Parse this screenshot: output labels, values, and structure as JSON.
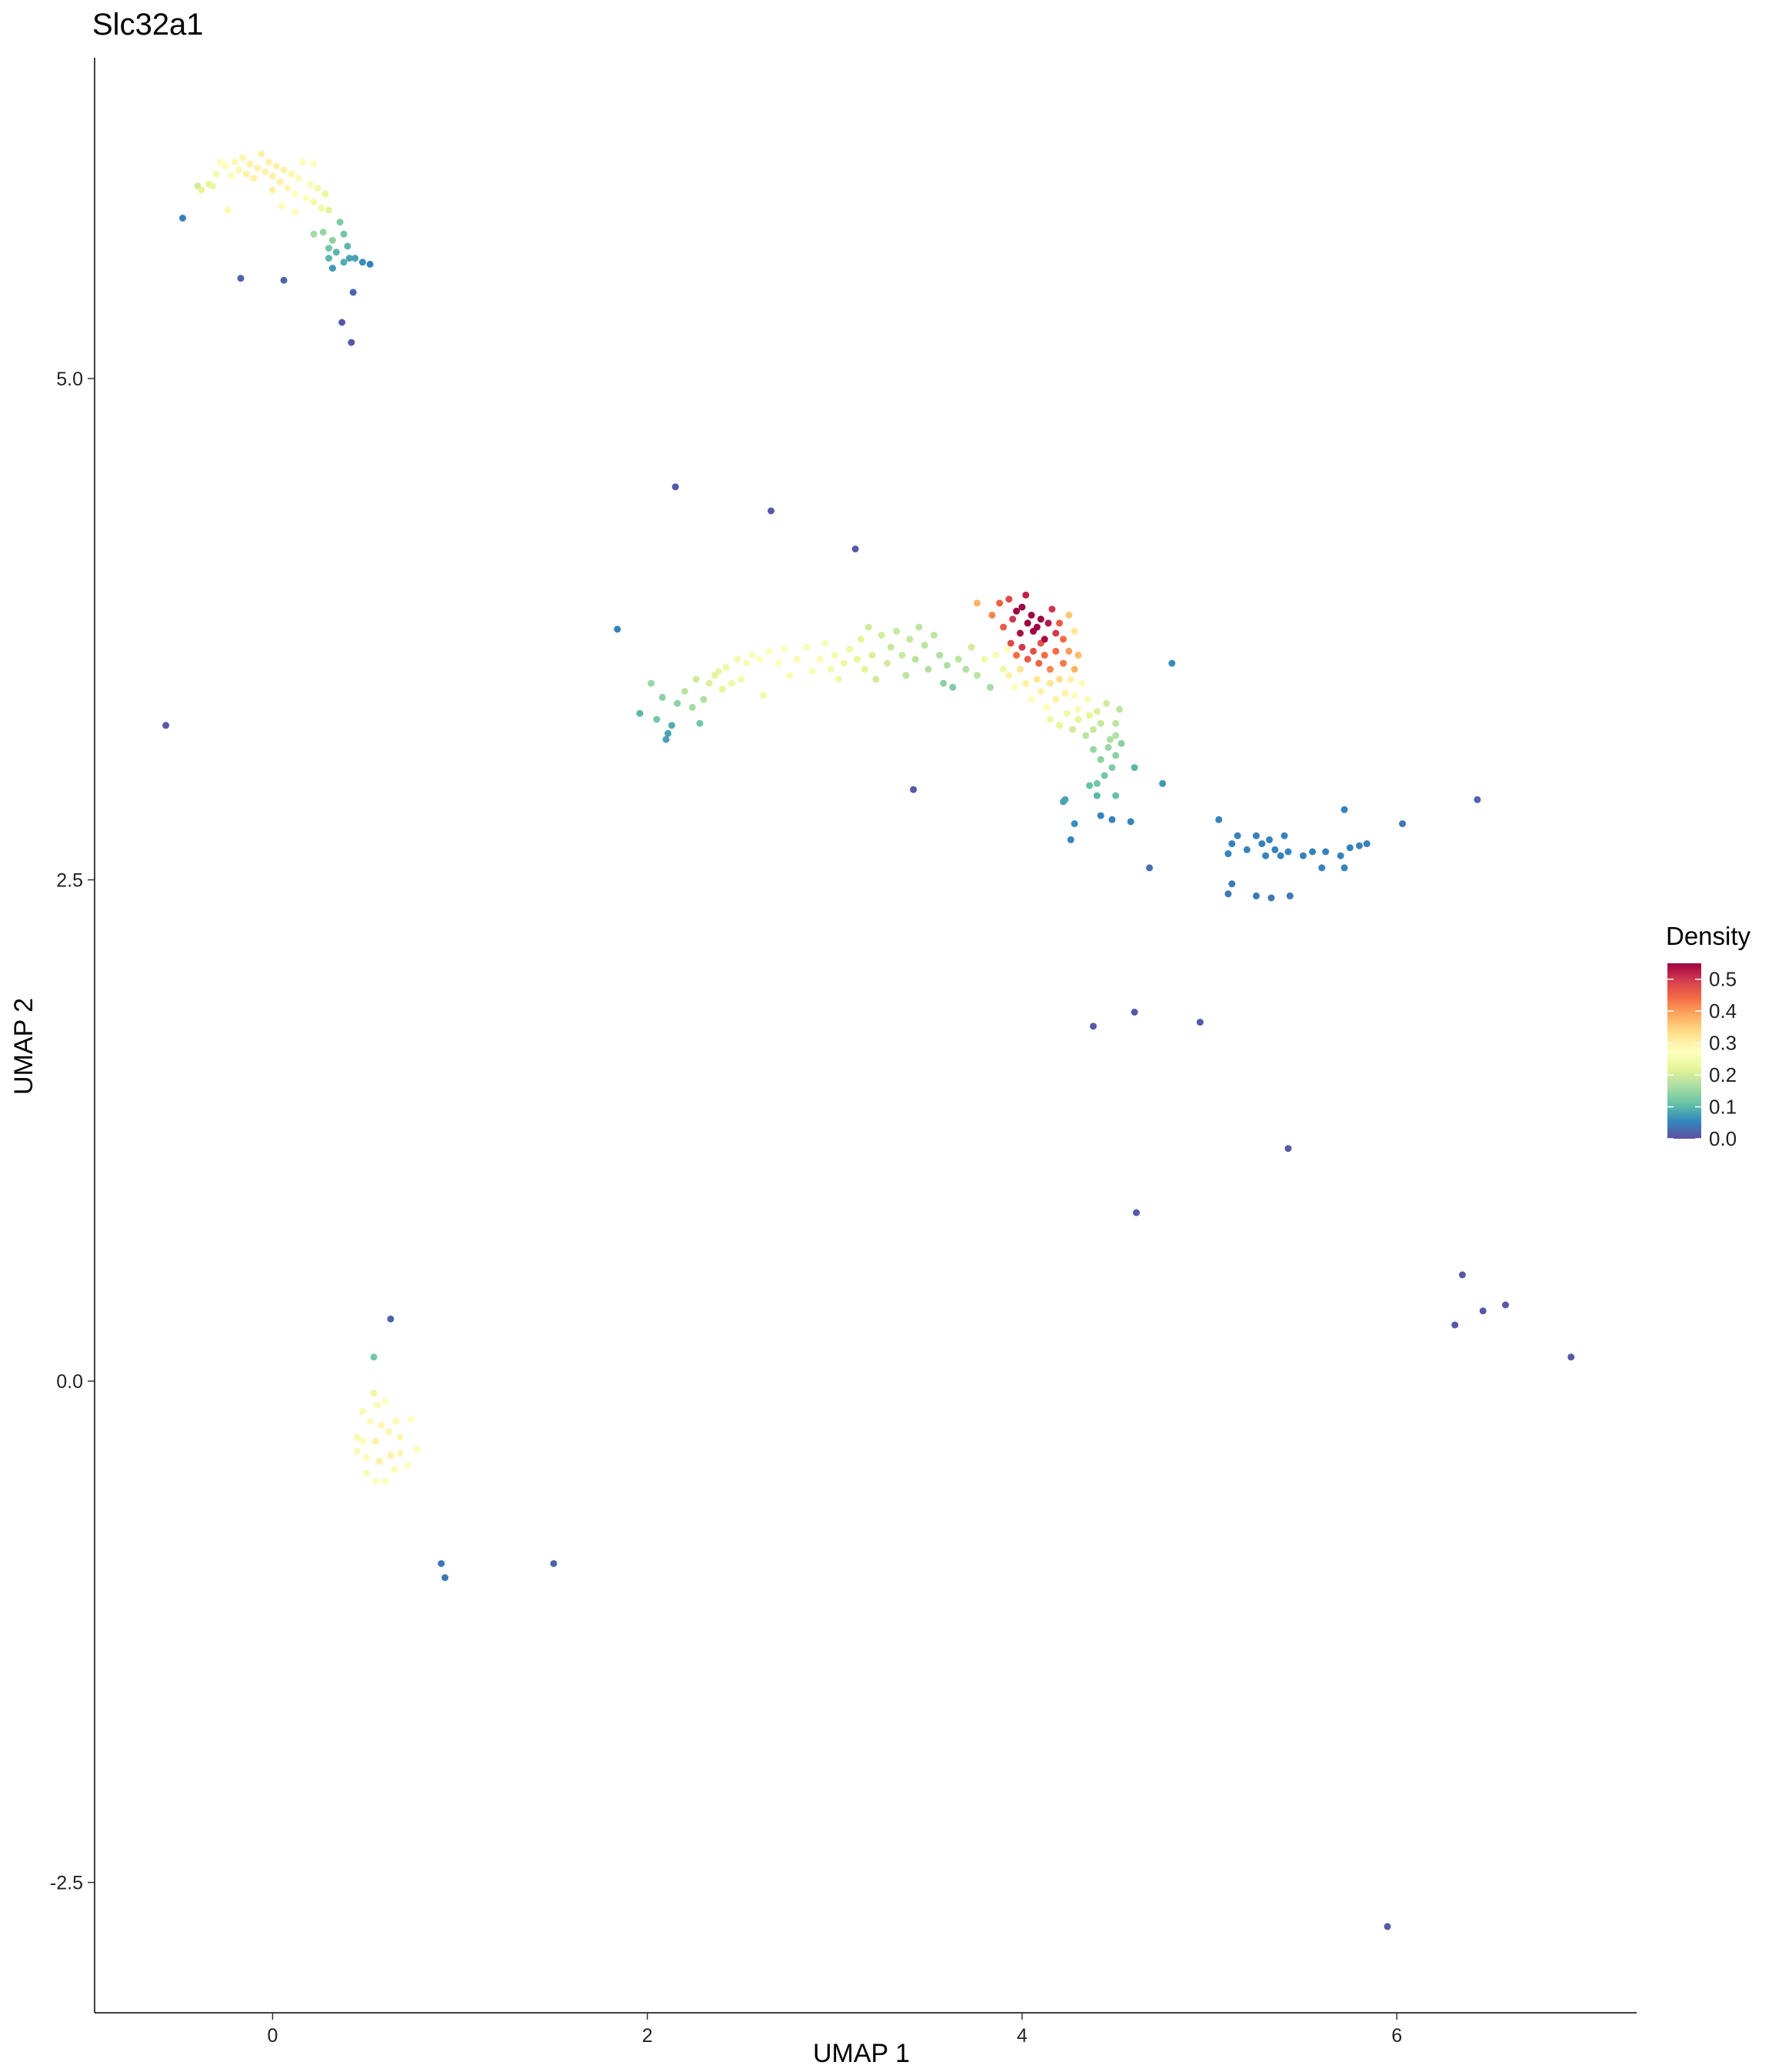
{
  "chart_data": {
    "type": "scatter",
    "title": "Slc32a1",
    "xlabel": "UMAP 1",
    "ylabel": "UMAP 2",
    "xlim": [
      -0.95,
      7.28
    ],
    "ylim": [
      -3.15,
      6.6
    ],
    "x_ticks": [
      0,
      2,
      4,
      6
    ],
    "y_ticks": [
      -2.5,
      0.0,
      2.5,
      5.0
    ],
    "x_tick_labels": [
      "0",
      "2",
      "4",
      "6"
    ],
    "y_tick_labels": [
      "-2.5",
      "0.0",
      "2.5",
      "5.0"
    ],
    "grid": false,
    "legend": {
      "title": "Density",
      "placement": "right",
      "range": [
        0.0,
        0.55
      ],
      "ticks": [
        0.0,
        0.1,
        0.2,
        0.3,
        0.4,
        0.5
      ],
      "tick_labels": [
        "0.0",
        "0.1",
        "0.2",
        "0.3",
        "0.4",
        "0.5"
      ],
      "colors": [
        "#5e4fa2",
        "#3288bd",
        "#66c2a5",
        "#abdda4",
        "#e6f598",
        "#ffffbf",
        "#fee08b",
        "#fdae61",
        "#f46d43",
        "#d53e4f",
        "#9e0142"
      ]
    },
    "points": [
      [
        -0.48,
        5.8,
        0.05
      ],
      [
        -0.4,
        5.96,
        0.2
      ],
      [
        -0.38,
        5.94,
        0.22
      ],
      [
        -0.34,
        5.97,
        0.22
      ],
      [
        -0.32,
        5.96,
        0.23
      ],
      [
        -0.3,
        6.02,
        0.25
      ],
      [
        -0.28,
        6.08,
        0.27
      ],
      [
        -0.25,
        6.06,
        0.28
      ],
      [
        -0.22,
        6.01,
        0.28
      ],
      [
        -0.2,
        6.08,
        0.29
      ],
      [
        -0.18,
        6.04,
        0.29
      ],
      [
        -0.16,
        6.1,
        0.29
      ],
      [
        -0.14,
        6.02,
        0.3
      ],
      [
        -0.12,
        6.07,
        0.3
      ],
      [
        -0.1,
        6.0,
        0.3
      ],
      [
        -0.08,
        6.05,
        0.3
      ],
      [
        -0.06,
        6.12,
        0.3
      ],
      [
        -0.04,
        6.03,
        0.3
      ],
      [
        -0.02,
        6.08,
        0.3
      ],
      [
        0.0,
        6.01,
        0.3
      ],
      [
        0.02,
        6.06,
        0.3
      ],
      [
        0.04,
        5.98,
        0.3
      ],
      [
        0.06,
        6.04,
        0.3
      ],
      [
        0.08,
        5.95,
        0.29
      ],
      [
        0.1,
        6.02,
        0.29
      ],
      [
        0.12,
        5.92,
        0.28
      ],
      [
        0.14,
        6.0,
        0.28
      ],
      [
        0.16,
        6.08,
        0.27
      ],
      [
        0.18,
        5.9,
        0.27
      ],
      [
        0.2,
        5.97,
        0.26
      ],
      [
        0.22,
        5.88,
        0.25
      ],
      [
        0.24,
        5.95,
        0.24
      ],
      [
        0.26,
        5.85,
        0.24
      ],
      [
        0.28,
        5.92,
        0.23
      ],
      [
        0.3,
        5.84,
        0.22
      ],
      [
        0.12,
        5.83,
        0.27
      ],
      [
        -0.24,
        5.84,
        0.26
      ],
      [
        0.05,
        5.86,
        0.28
      ],
      [
        0.22,
        6.07,
        0.27
      ],
      [
        0.0,
        5.94,
        0.3
      ],
      [
        0.27,
        5.73,
        0.15
      ],
      [
        0.22,
        5.72,
        0.16
      ],
      [
        0.32,
        5.69,
        0.14
      ],
      [
        0.36,
        5.78,
        0.13
      ],
      [
        0.38,
        5.72,
        0.12
      ],
      [
        0.4,
        5.66,
        0.1
      ],
      [
        0.34,
        5.63,
        0.1
      ],
      [
        0.38,
        5.58,
        0.09
      ],
      [
        0.41,
        5.6,
        0.08
      ],
      [
        0.44,
        5.6,
        0.08
      ],
      [
        0.3,
        5.6,
        0.1
      ],
      [
        0.32,
        5.55,
        0.07
      ],
      [
        0.3,
        5.65,
        0.12
      ],
      [
        0.48,
        5.58,
        0.06
      ],
      [
        0.52,
        5.57,
        0.05
      ],
      [
        -0.17,
        5.5,
        0.02
      ],
      [
        0.06,
        5.49,
        0.02
      ],
      [
        0.43,
        5.43,
        0.02
      ],
      [
        0.37,
        5.28,
        0.01
      ],
      [
        0.42,
        5.18,
        0.01
      ],
      [
        -0.57,
        3.27,
        0.01
      ],
      [
        2.15,
        4.46,
        0.01
      ],
      [
        2.66,
        4.34,
        0.01
      ],
      [
        3.11,
        4.15,
        0.01
      ],
      [
        3.42,
        2.95,
        0.01
      ],
      [
        1.84,
        3.75,
        0.05
      ],
      [
        1.96,
        3.33,
        0.1
      ],
      [
        2.02,
        3.48,
        0.15
      ],
      [
        2.05,
        3.3,
        0.12
      ],
      [
        2.08,
        3.41,
        0.14
      ],
      [
        2.1,
        3.2,
        0.08
      ],
      [
        2.11,
        3.23,
        0.08
      ],
      [
        2.13,
        3.27,
        0.09
      ],
      [
        2.16,
        3.38,
        0.14
      ],
      [
        2.2,
        3.44,
        0.18
      ],
      [
        2.24,
        3.36,
        0.16
      ],
      [
        2.26,
        3.5,
        0.2
      ],
      [
        2.28,
        3.28,
        0.12
      ],
      [
        2.3,
        3.4,
        0.17
      ],
      [
        2.33,
        3.48,
        0.21
      ],
      [
        2.36,
        3.52,
        0.22
      ],
      [
        2.38,
        3.54,
        0.23
      ],
      [
        2.4,
        3.45,
        0.22
      ],
      [
        2.42,
        3.56,
        0.24
      ],
      [
        2.45,
        3.48,
        0.24
      ],
      [
        2.48,
        3.6,
        0.25
      ],
      [
        2.5,
        3.5,
        0.25
      ],
      [
        2.53,
        3.58,
        0.26
      ],
      [
        2.56,
        3.62,
        0.26
      ],
      [
        2.6,
        3.6,
        0.27
      ],
      [
        2.62,
        3.42,
        0.25
      ],
      [
        2.65,
        3.64,
        0.27
      ],
      [
        2.7,
        3.58,
        0.27
      ],
      [
        2.73,
        3.65,
        0.27
      ],
      [
        2.76,
        3.52,
        0.26
      ],
      [
        2.8,
        3.6,
        0.26
      ],
      [
        2.85,
        3.66,
        0.26
      ],
      [
        2.88,
        3.54,
        0.26
      ],
      [
        2.92,
        3.6,
        0.26
      ],
      [
        2.95,
        3.68,
        0.26
      ],
      [
        2.98,
        3.55,
        0.25
      ],
      [
        3.0,
        3.62,
        0.25
      ],
      [
        3.02,
        3.5,
        0.24
      ],
      [
        3.05,
        3.58,
        0.24
      ],
      [
        3.08,
        3.65,
        0.24
      ],
      [
        3.12,
        3.6,
        0.23
      ],
      [
        3.14,
        3.7,
        0.22
      ],
      [
        3.16,
        3.55,
        0.22
      ],
      [
        3.18,
        3.76,
        0.2
      ],
      [
        3.2,
        3.62,
        0.21
      ],
      [
        3.22,
        3.5,
        0.2
      ],
      [
        3.25,
        3.72,
        0.2
      ],
      [
        3.28,
        3.58,
        0.2
      ],
      [
        3.3,
        3.66,
        0.19
      ],
      [
        3.33,
        3.74,
        0.19
      ],
      [
        3.36,
        3.62,
        0.19
      ],
      [
        3.38,
        3.52,
        0.18
      ],
      [
        3.4,
        3.7,
        0.19
      ],
      [
        3.43,
        3.6,
        0.18
      ],
      [
        3.45,
        3.76,
        0.18
      ],
      [
        3.48,
        3.67,
        0.18
      ],
      [
        3.5,
        3.55,
        0.17
      ],
      [
        3.53,
        3.72,
        0.18
      ],
      [
        3.56,
        3.62,
        0.17
      ],
      [
        3.58,
        3.48,
        0.14
      ],
      [
        3.6,
        3.57,
        0.17
      ],
      [
        3.63,
        3.46,
        0.13
      ],
      [
        3.66,
        3.6,
        0.18
      ],
      [
        3.7,
        3.55,
        0.17
      ],
      [
        3.73,
        3.66,
        0.2
      ],
      [
        3.76,
        3.52,
        0.18
      ],
      [
        3.8,
        3.6,
        0.24
      ],
      [
        3.83,
        3.46,
        0.16
      ],
      [
        3.86,
        3.62,
        0.26
      ],
      [
        3.9,
        3.55,
        0.24
      ],
      [
        3.92,
        3.65,
        0.28
      ],
      [
        3.76,
        3.88,
        0.38
      ],
      [
        3.84,
        3.82,
        0.42
      ],
      [
        3.88,
        3.88,
        0.45
      ],
      [
        3.9,
        3.76,
        0.46
      ],
      [
        3.93,
        3.9,
        0.48
      ],
      [
        3.95,
        3.8,
        0.5
      ],
      [
        3.97,
        3.84,
        0.55
      ],
      [
        3.99,
        3.73,
        0.54
      ],
      [
        4.0,
        3.86,
        0.55
      ],
      [
        4.02,
        3.92,
        0.52
      ],
      [
        4.03,
        3.78,
        0.55
      ],
      [
        4.05,
        3.82,
        0.55
      ],
      [
        4.06,
        3.74,
        0.55
      ],
      [
        4.08,
        3.76,
        0.55
      ],
      [
        4.1,
        3.8,
        0.55
      ],
      [
        4.12,
        3.7,
        0.54
      ],
      [
        4.14,
        3.78,
        0.53
      ],
      [
        4.16,
        3.85,
        0.5
      ],
      [
        4.18,
        3.73,
        0.5
      ],
      [
        4.2,
        3.78,
        0.46
      ],
      [
        4.22,
        3.7,
        0.44
      ],
      [
        4.25,
        3.82,
        0.36
      ],
      [
        4.28,
        3.74,
        0.32
      ],
      [
        3.94,
        3.68,
        0.48
      ],
      [
        3.97,
        3.62,
        0.44
      ],
      [
        4.0,
        3.66,
        0.5
      ],
      [
        4.03,
        3.6,
        0.46
      ],
      [
        4.06,
        3.64,
        0.47
      ],
      [
        4.09,
        3.58,
        0.45
      ],
      [
        4.12,
        3.62,
        0.44
      ],
      [
        4.15,
        3.55,
        0.42
      ],
      [
        4.18,
        3.64,
        0.44
      ],
      [
        4.22,
        3.58,
        0.43
      ],
      [
        4.25,
        3.64,
        0.4
      ],
      [
        4.28,
        3.55,
        0.38
      ],
      [
        4.3,
        3.62,
        0.37
      ],
      [
        4.1,
        3.68,
        0.47
      ],
      [
        3.93,
        3.52,
        0.3
      ],
      [
        3.96,
        3.46,
        0.28
      ],
      [
        3.99,
        3.55,
        0.32
      ],
      [
        4.02,
        3.48,
        0.3
      ],
      [
        4.05,
        3.4,
        0.28
      ],
      [
        4.08,
        3.5,
        0.32
      ],
      [
        4.1,
        3.44,
        0.3
      ],
      [
        4.13,
        3.36,
        0.28
      ],
      [
        4.15,
        3.48,
        0.32
      ],
      [
        4.18,
        3.4,
        0.3
      ],
      [
        4.2,
        3.5,
        0.33
      ],
      [
        4.23,
        3.43,
        0.3
      ],
      [
        4.26,
        3.5,
        0.3
      ],
      [
        4.28,
        3.42,
        0.28
      ],
      [
        4.3,
        3.35,
        0.26
      ],
      [
        4.32,
        3.48,
        0.28
      ],
      [
        4.35,
        3.4,
        0.26
      ],
      [
        4.15,
        3.3,
        0.24
      ],
      [
        4.2,
        3.27,
        0.22
      ],
      [
        4.24,
        3.33,
        0.24
      ],
      [
        4.27,
        3.25,
        0.2
      ],
      [
        4.3,
        3.3,
        0.22
      ],
      [
        4.34,
        3.22,
        0.18
      ],
      [
        4.36,
        3.32,
        0.22
      ],
      [
        4.38,
        3.25,
        0.19
      ],
      [
        4.4,
        3.34,
        0.21
      ],
      [
        4.42,
        3.28,
        0.19
      ],
      [
        4.45,
        3.38,
        0.2
      ],
      [
        4.47,
        3.2,
        0.17
      ],
      [
        4.5,
        3.28,
        0.18
      ],
      [
        4.52,
        3.35,
        0.18
      ],
      [
        4.38,
        3.15,
        0.15
      ],
      [
        4.42,
        3.1,
        0.14
      ],
      [
        4.46,
        3.16,
        0.15
      ],
      [
        4.5,
        3.12,
        0.14
      ],
      [
        4.53,
        3.18,
        0.14
      ],
      [
        4.48,
        3.06,
        0.13
      ],
      [
        4.5,
        3.22,
        0.17
      ],
      [
        4.44,
        3.02,
        0.12
      ],
      [
        4.4,
        2.98,
        0.12
      ],
      [
        4.36,
        2.97,
        0.11
      ],
      [
        4.5,
        2.92,
        0.11
      ],
      [
        4.4,
        2.92,
        0.1
      ],
      [
        4.6,
        3.06,
        0.1
      ],
      [
        4.75,
        2.98,
        0.07
      ],
      [
        4.8,
        3.58,
        0.06
      ],
      [
        4.22,
        2.89,
        0.08
      ],
      [
        4.23,
        2.9,
        0.08
      ],
      [
        4.28,
        2.78,
        0.06
      ],
      [
        4.26,
        2.7,
        0.05
      ],
      [
        4.42,
        2.82,
        0.05
      ],
      [
        4.48,
        2.8,
        0.05
      ],
      [
        4.58,
        2.79,
        0.05
      ],
      [
        4.68,
        2.56,
        0.03
      ],
      [
        4.38,
        1.77,
        0.01
      ],
      [
        4.6,
        1.84,
        0.01
      ],
      [
        4.95,
        1.79,
        0.01
      ],
      [
        5.05,
        2.8,
        0.05
      ],
      [
        5.1,
        2.63,
        0.05
      ],
      [
        5.12,
        2.68,
        0.05
      ],
      [
        5.15,
        2.72,
        0.05
      ],
      [
        5.12,
        2.48,
        0.04
      ],
      [
        5.1,
        2.43,
        0.04
      ],
      [
        5.2,
        2.65,
        0.05
      ],
      [
        5.25,
        2.72,
        0.05
      ],
      [
        5.28,
        2.68,
        0.05
      ],
      [
        5.3,
        2.62,
        0.05
      ],
      [
        5.32,
        2.7,
        0.05
      ],
      [
        5.35,
        2.65,
        0.05
      ],
      [
        5.38,
        2.62,
        0.05
      ],
      [
        5.4,
        2.72,
        0.05
      ],
      [
        5.42,
        2.64,
        0.05
      ],
      [
        5.25,
        2.42,
        0.04
      ],
      [
        5.33,
        2.41,
        0.04
      ],
      [
        5.43,
        2.42,
        0.04
      ],
      [
        5.5,
        2.62,
        0.05
      ],
      [
        5.55,
        2.64,
        0.05
      ],
      [
        5.6,
        2.56,
        0.05
      ],
      [
        5.62,
        2.64,
        0.05
      ],
      [
        5.7,
        2.62,
        0.05
      ],
      [
        5.72,
        2.56,
        0.05
      ],
      [
        5.75,
        2.66,
        0.05
      ],
      [
        5.72,
        2.85,
        0.05
      ],
      [
        5.8,
        2.67,
        0.05
      ],
      [
        5.84,
        2.68,
        0.05
      ],
      [
        6.03,
        2.78,
        0.04
      ],
      [
        6.43,
        2.9,
        0.02
      ],
      [
        5.42,
        1.16,
        0.01
      ],
      [
        4.61,
        0.84,
        0.01
      ],
      [
        6.35,
        0.53,
        0.01
      ],
      [
        6.31,
        0.28,
        0.01
      ],
      [
        6.46,
        0.35,
        0.01
      ],
      [
        6.58,
        0.38,
        0.01
      ],
      [
        6.93,
        0.12,
        0.01
      ],
      [
        5.95,
        -2.72,
        0.01
      ],
      [
        0.63,
        0.31,
        0.02
      ],
      [
        0.54,
        0.12,
        0.12
      ],
      [
        0.54,
        -0.06,
        0.24
      ],
      [
        0.56,
        -0.12,
        0.26
      ],
      [
        0.48,
        -0.15,
        0.26
      ],
      [
        0.6,
        -0.1,
        0.27
      ],
      [
        0.52,
        -0.2,
        0.28
      ],
      [
        0.58,
        -0.22,
        0.29
      ],
      [
        0.62,
        -0.25,
        0.29
      ],
      [
        0.48,
        -0.3,
        0.28
      ],
      [
        0.55,
        -0.3,
        0.3
      ],
      [
        0.66,
        -0.2,
        0.29
      ],
      [
        0.68,
        -0.28,
        0.29
      ],
      [
        0.74,
        -0.19,
        0.27
      ],
      [
        0.5,
        -0.38,
        0.28
      ],
      [
        0.57,
        -0.4,
        0.3
      ],
      [
        0.63,
        -0.37,
        0.3
      ],
      [
        0.68,
        -0.36,
        0.29
      ],
      [
        0.77,
        -0.34,
        0.27
      ],
      [
        0.5,
        -0.46,
        0.26
      ],
      [
        0.55,
        -0.5,
        0.27
      ],
      [
        0.6,
        -0.5,
        0.27
      ],
      [
        0.65,
        -0.44,
        0.28
      ],
      [
        0.72,
        -0.42,
        0.27
      ],
      [
        0.45,
        -0.35,
        0.26
      ],
      [
        0.45,
        -0.28,
        0.26
      ],
      [
        0.9,
        -0.91,
        0.04
      ],
      [
        0.92,
        -0.98,
        0.04
      ],
      [
        1.5,
        -0.91,
        0.02
      ]
    ]
  }
}
